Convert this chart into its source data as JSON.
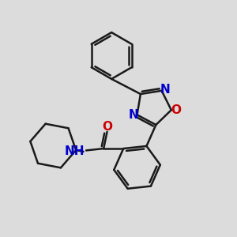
{
  "background_color": "#dcdcdc",
  "bond_color": "#1a1a1a",
  "N_color": "#0000cc",
  "O_color": "#cc0000",
  "bond_width": 1.8,
  "font_size_atom": 11,
  "fig_width": 3.0,
  "fig_height": 3.0,
  "dpi": 100,
  "xlim": [
    0,
    10
  ],
  "ylim": [
    0,
    10
  ]
}
